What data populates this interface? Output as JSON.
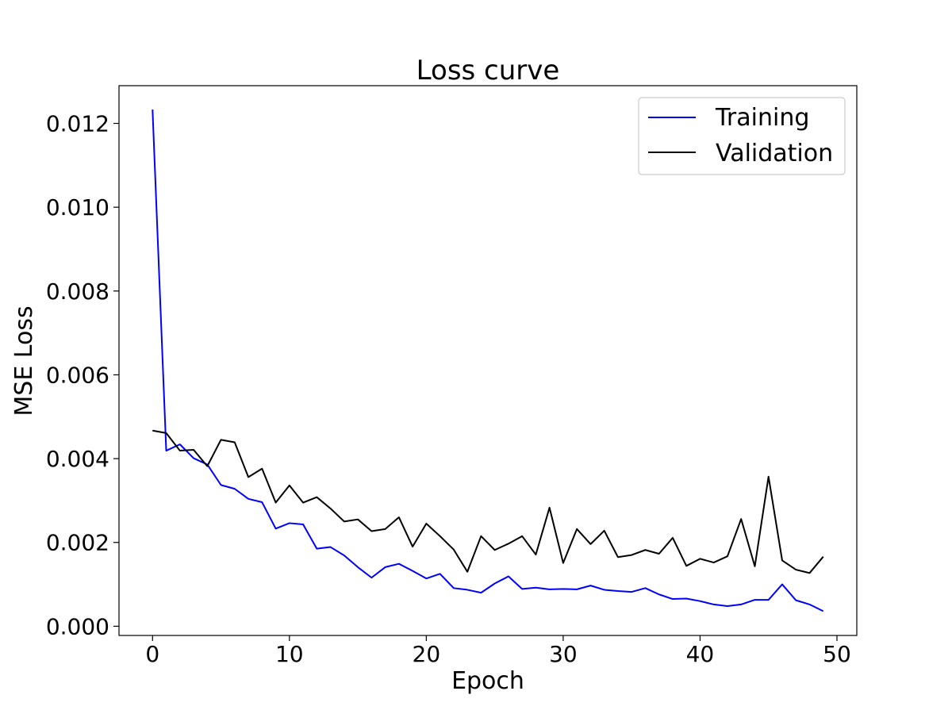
{
  "chart_data": {
    "type": "line",
    "title": "Loss curve",
    "xlabel": "Epoch",
    "ylabel": "MSE Loss",
    "xlim": [
      -2.45,
      51.45
    ],
    "ylim": [
      -0.00022,
      0.0129
    ],
    "xticks": [
      0,
      10,
      20,
      30,
      40,
      50
    ],
    "xtick_labels": [
      "0",
      "10",
      "20",
      "30",
      "40",
      "50"
    ],
    "yticks": [
      0.0,
      0.002,
      0.004,
      0.006,
      0.008,
      0.01,
      0.012
    ],
    "ytick_labels": [
      "0.000",
      "0.002",
      "0.004",
      "0.006",
      "0.008",
      "0.010",
      "0.012"
    ],
    "grid": false,
    "legend": {
      "placement": "top-right",
      "entries": [
        "Training",
        "Validation"
      ]
    },
    "x": [
      0,
      1,
      2,
      3,
      4,
      5,
      6,
      7,
      8,
      9,
      10,
      11,
      12,
      13,
      14,
      15,
      16,
      17,
      18,
      19,
      20,
      21,
      22,
      23,
      24,
      25,
      26,
      27,
      28,
      29,
      30,
      31,
      32,
      33,
      34,
      35,
      36,
      37,
      38,
      39,
      40,
      41,
      42,
      43,
      44,
      45,
      46,
      47,
      48,
      49
    ],
    "series": [
      {
        "name": "Training",
        "color": "#0000ff",
        "values": [
          0.01233,
          0.00419,
          0.00434,
          0.00401,
          0.00386,
          0.00337,
          0.00328,
          0.00304,
          0.00296,
          0.00233,
          0.00246,
          0.00243,
          0.00185,
          0.00189,
          0.00169,
          0.00141,
          0.00116,
          0.00141,
          0.00149,
          0.00132,
          0.00114,
          0.00125,
          0.00091,
          0.00087,
          0.0008,
          0.00102,
          0.00119,
          0.00089,
          0.00092,
          0.00088,
          0.00089,
          0.00088,
          0.00097,
          0.00087,
          0.00084,
          0.00082,
          0.00091,
          0.00076,
          0.00065,
          0.00066,
          0.0006,
          0.00052,
          0.00048,
          0.00052,
          0.00063,
          0.00063,
          0.001,
          0.00062,
          0.00052,
          0.00036
        ]
      },
      {
        "name": "Validation",
        "color": "#000000",
        "values": [
          0.00467,
          0.00461,
          0.00419,
          0.00421,
          0.00382,
          0.00445,
          0.00439,
          0.00356,
          0.00376,
          0.00295,
          0.00336,
          0.00295,
          0.00308,
          0.00281,
          0.0025,
          0.00255,
          0.00227,
          0.00232,
          0.0026,
          0.0019,
          0.00245,
          0.00215,
          0.00183,
          0.0013,
          0.00215,
          0.00182,
          0.00197,
          0.00215,
          0.00171,
          0.00283,
          0.00151,
          0.00232,
          0.00196,
          0.00228,
          0.00165,
          0.0017,
          0.00182,
          0.00173,
          0.00211,
          0.00144,
          0.00161,
          0.00152,
          0.00167,
          0.00256,
          0.00143,
          0.00357,
          0.00157,
          0.00135,
          0.00127,
          0.00166
        ]
      }
    ]
  }
}
